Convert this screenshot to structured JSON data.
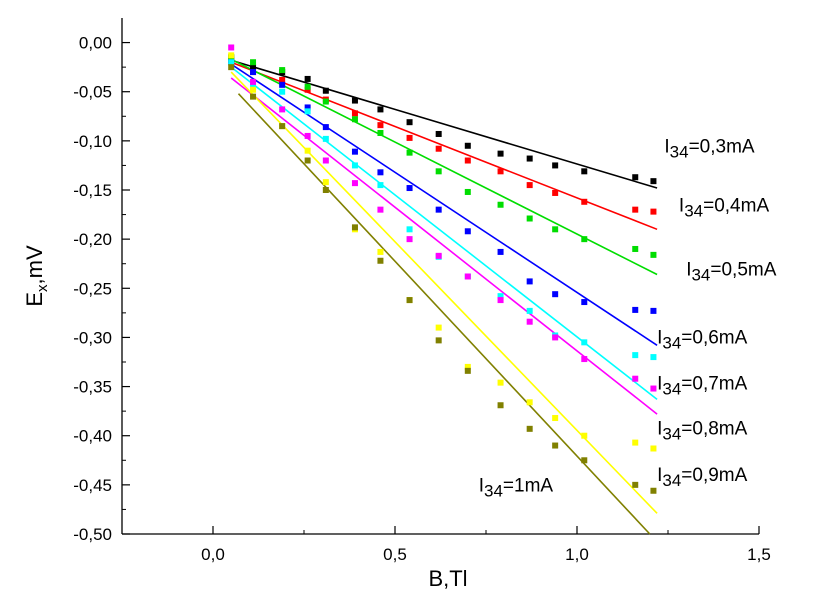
{
  "chart_data": {
    "type": "scatter",
    "title": "",
    "xlabel": "B,Tl",
    "ylabel_main": "E",
    "ylabel_sub": "x",
    "ylabel_tail": ",mV",
    "xlim": [
      -0.25,
      1.5
    ],
    "ylim": [
      -0.5,
      0.025
    ],
    "x_ticks": [
      {
        "value": 0.0,
        "label": "0,0"
      },
      {
        "value": 0.5,
        "label": "0,5"
      },
      {
        "value": 1.0,
        "label": "1,0"
      },
      {
        "value": 1.5,
        "label": "1,5"
      }
    ],
    "y_ticks": [
      {
        "value": 0.0,
        "label": "0,00"
      },
      {
        "value": -0.05,
        "label": "-0,05"
      },
      {
        "value": -0.1,
        "label": "-0,10"
      },
      {
        "value": -0.15,
        "label": "-0,15"
      },
      {
        "value": -0.2,
        "label": "-0,20"
      },
      {
        "value": -0.25,
        "label": "-0,25"
      },
      {
        "value": -0.3,
        "label": "-0,30"
      },
      {
        "value": -0.35,
        "label": "-0,35"
      },
      {
        "value": -0.4,
        "label": "-0,40"
      },
      {
        "value": -0.45,
        "label": "-0,45"
      },
      {
        "value": -0.5,
        "label": "-0,50"
      }
    ],
    "series": [
      {
        "name": "I34=0,3mA",
        "label_main": "I",
        "label_sub": "34",
        "label_tail": "=0,3mA",
        "label_anchor": [
          1.24,
          -0.112
        ],
        "color": "#000000",
        "fit": [
          [
            0.05,
            -0.018
          ],
          [
            1.22,
            -0.148
          ]
        ],
        "points": [
          [
            0.05,
            -0.015
          ],
          [
            0.11,
            -0.025
          ],
          [
            0.19,
            -0.03
          ],
          [
            0.26,
            -0.037
          ],
          [
            0.31,
            -0.049
          ],
          [
            0.39,
            -0.059
          ],
          [
            0.46,
            -0.068
          ],
          [
            0.54,
            -0.081
          ],
          [
            0.62,
            -0.093
          ],
          [
            0.7,
            -0.105
          ],
          [
            0.79,
            -0.113
          ],
          [
            0.87,
            -0.118
          ],
          [
            0.94,
            -0.125
          ],
          [
            1.02,
            -0.131
          ],
          [
            1.16,
            -0.137
          ],
          [
            1.21,
            -0.141
          ]
        ]
      },
      {
        "name": "I34=0,4mA",
        "label_main": "I",
        "label_sub": "34",
        "label_tail": "=0,4mA",
        "label_anchor": [
          1.28,
          -0.172
        ],
        "color": "#ff0000",
        "fit": [
          [
            0.05,
            -0.02
          ],
          [
            1.22,
            -0.19
          ]
        ],
        "points": [
          [
            0.05,
            -0.018
          ],
          [
            0.11,
            -0.03
          ],
          [
            0.19,
            -0.038
          ],
          [
            0.26,
            -0.048
          ],
          [
            0.31,
            -0.058
          ],
          [
            0.39,
            -0.072
          ],
          [
            0.46,
            -0.084
          ],
          [
            0.54,
            -0.097
          ],
          [
            0.62,
            -0.108
          ],
          [
            0.7,
            -0.12
          ],
          [
            0.79,
            -0.131
          ],
          [
            0.87,
            -0.145
          ],
          [
            0.94,
            -0.153
          ],
          [
            1.02,
            -0.162
          ],
          [
            1.16,
            -0.17
          ],
          [
            1.21,
            -0.172
          ]
        ]
      },
      {
        "name": "I34=0,5mA",
        "label_main": "I",
        "label_sub": "34",
        "label_tail": "=0,5mA",
        "label_anchor": [
          1.3,
          -0.237
        ],
        "color": "#00dd00",
        "fit": [
          [
            0.05,
            -0.017
          ],
          [
            1.22,
            -0.236
          ]
        ],
        "points": [
          [
            0.05,
            -0.015
          ],
          [
            0.11,
            -0.02
          ],
          [
            0.19,
            -0.028
          ],
          [
            0.26,
            -0.045
          ],
          [
            0.31,
            -0.06
          ],
          [
            0.39,
            -0.078
          ],
          [
            0.46,
            -0.092
          ],
          [
            0.54,
            -0.112
          ],
          [
            0.62,
            -0.131
          ],
          [
            0.7,
            -0.152
          ],
          [
            0.79,
            -0.165
          ],
          [
            0.87,
            -0.179
          ],
          [
            0.94,
            -0.19
          ],
          [
            1.02,
            -0.2
          ],
          [
            1.16,
            -0.21
          ],
          [
            1.21,
            -0.216
          ]
        ]
      },
      {
        "name": "I34=0,6mA",
        "label_main": "I",
        "label_sub": "34",
        "label_tail": "=0,6mA",
        "label_anchor": [
          1.22,
          -0.306
        ],
        "color": "#0000ff",
        "fit": [
          [
            0.05,
            -0.022
          ],
          [
            1.22,
            -0.308
          ]
        ],
        "points": [
          [
            0.05,
            -0.02
          ],
          [
            0.11,
            -0.03
          ],
          [
            0.19,
            -0.043
          ],
          [
            0.26,
            -0.066
          ],
          [
            0.31,
            -0.086
          ],
          [
            0.39,
            -0.111
          ],
          [
            0.46,
            -0.132
          ],
          [
            0.54,
            -0.148
          ],
          [
            0.62,
            -0.17
          ],
          [
            0.7,
            -0.192
          ],
          [
            0.79,
            -0.213
          ],
          [
            0.87,
            -0.243
          ],
          [
            0.94,
            -0.256
          ],
          [
            1.02,
            -0.264
          ],
          [
            1.16,
            -0.272
          ],
          [
            1.21,
            -0.273
          ]
        ]
      },
      {
        "name": "I34=0,7mA",
        "label_main": "I",
        "label_sub": "34",
        "label_tail": "=0,7mA",
        "label_anchor": [
          1.22,
          -0.353
        ],
        "color": "#00ffff",
        "fit": [
          [
            0.05,
            -0.025
          ],
          [
            1.22,
            -0.363
          ]
        ],
        "points": [
          [
            0.05,
            -0.02
          ],
          [
            0.11,
            -0.045
          ],
          [
            0.19,
            -0.05
          ],
          [
            0.26,
            -0.07
          ],
          [
            0.31,
            -0.098
          ],
          [
            0.39,
            -0.125
          ],
          [
            0.46,
            -0.145
          ],
          [
            0.54,
            -0.19
          ],
          [
            0.62,
            -0.218
          ],
          [
            0.7,
            -0.238
          ],
          [
            0.79,
            -0.258
          ],
          [
            0.87,
            -0.273
          ],
          [
            0.94,
            -0.298
          ],
          [
            1.02,
            -0.305
          ],
          [
            1.16,
            -0.318
          ],
          [
            1.21,
            -0.32
          ]
        ]
      },
      {
        "name": "I34=0,8mA",
        "label_main": "I",
        "label_sub": "34",
        "label_tail": "=0,8mA",
        "label_anchor": [
          1.22,
          -0.399
        ],
        "color": "#ff00ff",
        "fit": [
          [
            0.05,
            -0.036
          ],
          [
            1.22,
            -0.378
          ]
        ],
        "points": [
          [
            0.05,
            -0.005
          ],
          [
            0.11,
            -0.04
          ],
          [
            0.19,
            -0.068
          ],
          [
            0.26,
            -0.095
          ],
          [
            0.31,
            -0.12
          ],
          [
            0.39,
            -0.143
          ],
          [
            0.46,
            -0.17
          ],
          [
            0.54,
            -0.2
          ],
          [
            0.62,
            -0.217
          ],
          [
            0.7,
            -0.238
          ],
          [
            0.79,
            -0.262
          ],
          [
            0.87,
            -0.284
          ],
          [
            0.94,
            -0.3
          ],
          [
            1.02,
            -0.322
          ],
          [
            1.16,
            -0.342
          ],
          [
            1.21,
            -0.352
          ]
        ]
      },
      {
        "name": "I34=0,9mA",
        "label_main": "I",
        "label_sub": "34",
        "label_tail": "=0,9mA",
        "label_anchor": [
          1.22,
          -0.446
        ],
        "color": "#ffff00",
        "fit": [
          [
            0.05,
            -0.03
          ],
          [
            1.22,
            -0.479
          ]
        ],
        "points": [
          [
            0.05,
            -0.013
          ],
          [
            0.11,
            -0.048
          ],
          [
            0.19,
            -0.085
          ],
          [
            0.26,
            -0.11
          ],
          [
            0.31,
            -0.142
          ],
          [
            0.39,
            -0.19
          ],
          [
            0.46,
            -0.213
          ],
          [
            0.54,
            -0.262
          ],
          [
            0.62,
            -0.29
          ],
          [
            0.7,
            -0.33
          ],
          [
            0.79,
            -0.346
          ],
          [
            0.87,
            -0.366
          ],
          [
            0.94,
            -0.382
          ],
          [
            1.02,
            -0.4
          ],
          [
            1.16,
            -0.407
          ],
          [
            1.21,
            -0.413
          ]
        ]
      },
      {
        "name": "I34=1mA",
        "label_main": "I",
        "label_sub": "34",
        "label_tail": "=1mA",
        "label_anchor": [
          0.73,
          -0.457
        ],
        "color": "#808000",
        "fit": [
          [
            0.07,
            -0.052
          ],
          [
            1.2,
            -0.5
          ]
        ],
        "points": [
          [
            0.05,
            -0.025
          ],
          [
            0.11,
            -0.055
          ],
          [
            0.19,
            -0.085
          ],
          [
            0.26,
            -0.12
          ],
          [
            0.31,
            -0.15
          ],
          [
            0.39,
            -0.188
          ],
          [
            0.46,
            -0.222
          ],
          [
            0.54,
            -0.262
          ],
          [
            0.62,
            -0.303
          ],
          [
            0.7,
            -0.334
          ],
          [
            0.79,
            -0.369
          ],
          [
            0.87,
            -0.393
          ],
          [
            0.94,
            -0.41
          ],
          [
            1.02,
            -0.425
          ],
          [
            1.16,
            -0.45
          ],
          [
            1.21,
            -0.456
          ]
        ]
      }
    ]
  }
}
